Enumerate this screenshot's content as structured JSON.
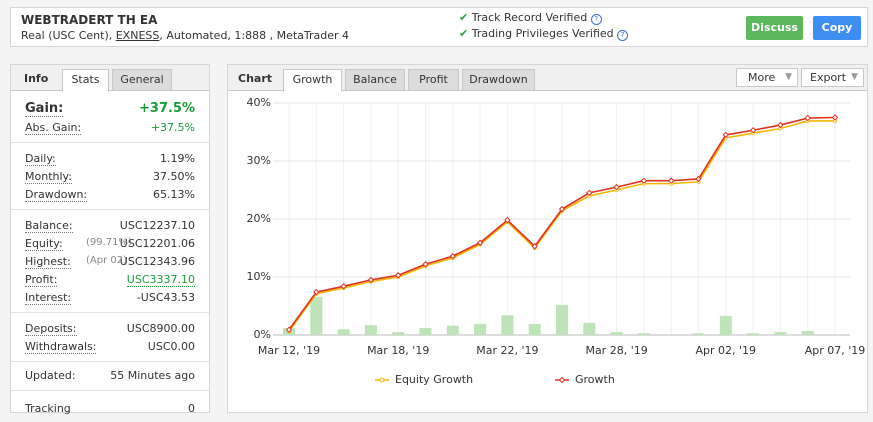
{
  "header": {
    "title": "WEBTRADERT TH EA",
    "account": "Real (USC Cent),",
    "broker": "EXNESS",
    "details": ", Automated, 1:888 , MetaTrader 4",
    "verified": [
      "Track Record Verified",
      "Trading Privileges Verified"
    ],
    "buttons": [
      "Discuss",
      "Copy"
    ]
  },
  "info_panel": {
    "label": "Info",
    "tabs": [
      "Stats",
      "General"
    ],
    "groups": [
      [
        {
          "label": "Gain:",
          "value": "+37.5%",
          "color": "#1a9e3a"
        },
        {
          "label": "Abs. Gain:",
          "value": "+37.5%",
          "color": "#1a9e3a"
        }
      ],
      [
        {
          "label": "Daily:",
          "value": "1.19%"
        },
        {
          "label": "Monthly:",
          "value": "37.50%"
        },
        {
          "label": "Drawdown:",
          "value": "65.13%"
        }
      ],
      [
        {
          "label": "Balance:",
          "value": "USC12237.10"
        },
        {
          "label": "Equity:",
          "note": "(99.71%)",
          "value": "USC12201.06"
        },
        {
          "label": "Highest:",
          "note": "(Apr 02)",
          "value": "USC12343.96"
        },
        {
          "label": "Profit:",
          "value": "USC3337.10",
          "color": "#1a9e3a"
        },
        {
          "label": "Interest:",
          "value": "-USC43.53"
        }
      ],
      [
        {
          "label": "Deposits:",
          "value": "USC8900.00"
        },
        {
          "label": "Withdrawals:",
          "value": "USC0.00"
        }
      ],
      [
        {
          "label": "Updated:",
          "value": "55 Minutes ago"
        }
      ],
      [
        {
          "label": "Tracking",
          "value": "0"
        }
      ]
    ]
  },
  "chart_panel": {
    "label": "Chart",
    "tabs": [
      "Growth",
      "Balance",
      "Profit",
      "Drawdown"
    ],
    "menus": [
      "More",
      "Export"
    ]
  },
  "chart_data": {
    "type": "line",
    "categories": [
      "Mar 12, '19",
      null,
      null,
      null,
      "Mar 18, '19",
      null,
      null,
      null,
      "Mar 22, '19",
      null,
      null,
      null,
      "Mar 28, '19",
      null,
      null,
      null,
      "Apr 02, '19",
      null,
      null,
      null,
      "Apr 07, '19"
    ],
    "ylim": [
      0,
      40
    ],
    "yticks": [
      {
        "value": 0,
        "label": "0%"
      },
      {
        "value": 10,
        "label": "10%"
      },
      {
        "value": 20,
        "label": "20%"
      },
      {
        "value": 30,
        "label": "30%"
      },
      {
        "value": 40,
        "label": "40%"
      }
    ],
    "grid": true,
    "series": [
      {
        "type": "bar",
        "color": "#bfe3b8",
        "values": [
          1.2,
          6.6,
          1.0,
          1.7,
          0.5,
          1.2,
          1.6,
          1.9,
          3.4,
          1.9,
          5.2,
          2.1,
          0.5,
          0.3,
          0,
          0.3,
          3.3,
          0.3,
          0.5,
          0.7,
          0
        ]
      },
      {
        "name": "Equity Growth",
        "color": "#f2b705",
        "values": [
          0.6,
          7.1,
          8.1,
          9.2,
          10.0,
          11.9,
          13.3,
          15.6,
          19.5,
          15.0,
          21.4,
          24.0,
          25.0,
          26.1,
          26.1,
          26.4,
          34.0,
          34.8,
          35.6,
          36.9,
          36.9
        ]
      },
      {
        "name": "Growth",
        "color": "#e0321f",
        "values": [
          0.9,
          7.4,
          8.4,
          9.5,
          10.3,
          12.2,
          13.6,
          15.9,
          19.8,
          15.3,
          21.7,
          24.5,
          25.5,
          26.6,
          26.6,
          26.9,
          34.5,
          35.3,
          36.2,
          37.4,
          37.5
        ]
      }
    ]
  }
}
